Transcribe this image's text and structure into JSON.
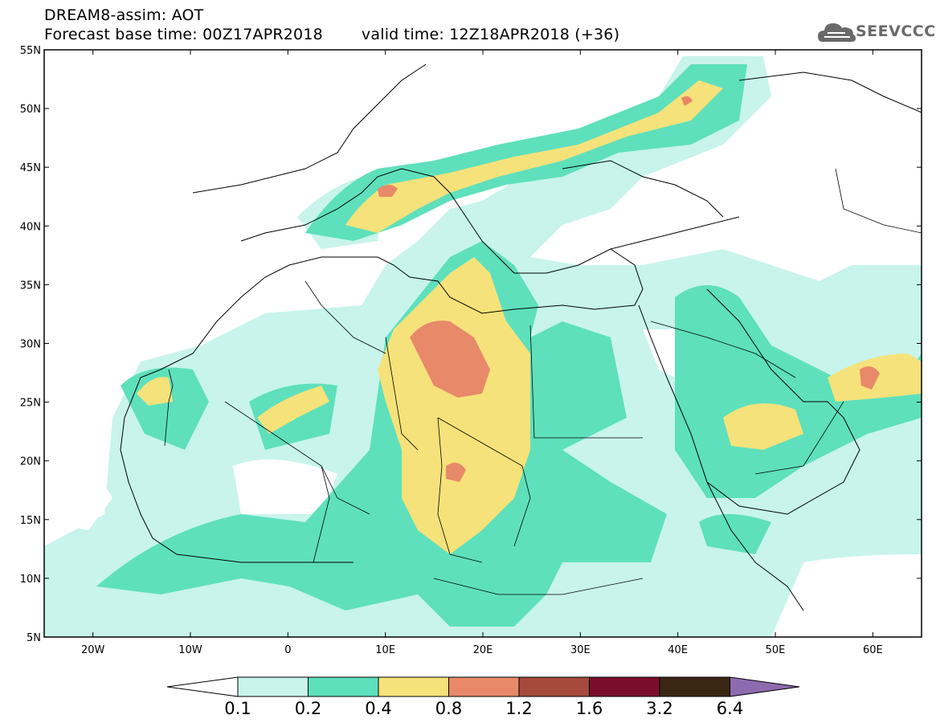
{
  "header": {
    "line1": "DREAM8-assim: AOT",
    "base_time": "Forecast base time: 00Z17APR2018",
    "valid_time": "valid time: 12Z18APR2018 (+36)"
  },
  "logo": {
    "text": "SEEVCCC",
    "icon": "cloud-icon",
    "color": "#6a6a6a"
  },
  "map": {
    "lon_range": [
      -25,
      65
    ],
    "lat_range": [
      5,
      55
    ],
    "lat_ticks": [
      "55N",
      "50N",
      "45N",
      "40N",
      "35N",
      "30N",
      "25N",
      "20N",
      "15N",
      "10N",
      "5N"
    ],
    "lon_ticks": [
      "20W",
      "10W",
      "0",
      "10E",
      "20E",
      "30E",
      "40E",
      "50E",
      "60E"
    ]
  },
  "colorbar": {
    "labels": [
      "0.1",
      "0.2",
      "0.4",
      "0.8",
      "1.2",
      "1.6",
      "3.2",
      "6.4"
    ],
    "colors": [
      "#ffffff",
      "#c8f4ec",
      "#5ee0bc",
      "#f6e27a",
      "#e8896a",
      "#a54a3c",
      "#7a0e2a",
      "#3b2614",
      "#8e6bb0"
    ]
  }
}
